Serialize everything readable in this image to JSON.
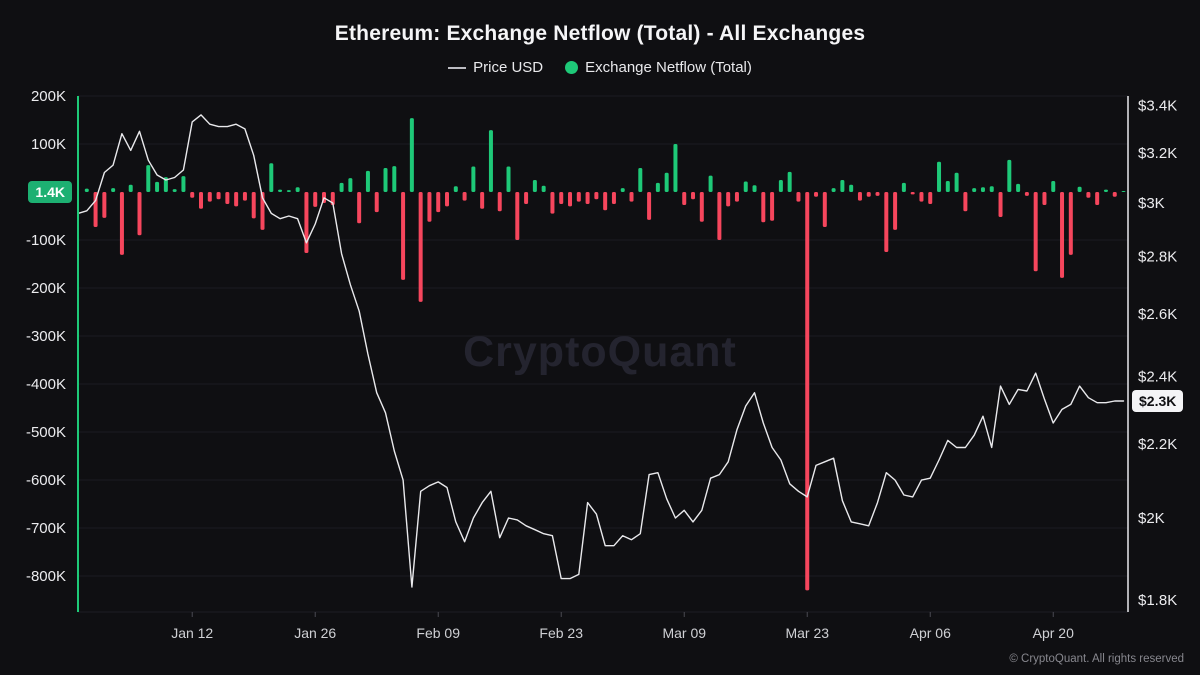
{
  "header": {
    "title": "Ethereum: Exchange Netflow (Total) - All Exchanges",
    "legend": {
      "price": "Price USD",
      "netflow": "Exchange Netflow (Total)"
    }
  },
  "badges": {
    "netflow": "1.4K",
    "price": "$2.3K"
  },
  "watermark": {
    "text": "CryptoQuant"
  },
  "footer": {
    "copyright": "© CryptoQuant. All rights reserved"
  },
  "colors": {
    "netflow_positive": "#1ec978",
    "netflow_negative": "#f6465d",
    "price_line": "#e9e9ec",
    "badge_netflow_bg": "#1db072",
    "badge_price_bg": "#f4f4f6",
    "grid": "#1b1b23",
    "left_axis_line": "#1ec978",
    "right_axis_line": "#e9e9ec"
  },
  "chart_data": {
    "type": "combo",
    "title": "Ethereum: Exchange Netflow (Total) - All Exchanges",
    "x": {
      "tick_labels": [
        "Jan 12",
        "Jan 26",
        "Feb 09",
        "Feb 23",
        "Mar 09",
        "Mar 23",
        "Apr 06",
        "Apr 20"
      ],
      "tick_day_indices": [
        13,
        27,
        41,
        55,
        69,
        83,
        97,
        111
      ],
      "days_total": 120
    },
    "left_axis": {
      "name": "Exchange Netflow (Total)",
      "unit": "K",
      "tick_labels": [
        "200K",
        "100K",
        "-100K",
        "-200K",
        "-300K",
        "-400K",
        "-500K",
        "-600K",
        "-700K",
        "-800K"
      ],
      "tick_values": [
        200,
        100,
        -100,
        -200,
        -300,
        -400,
        -500,
        -600,
        -700,
        -800
      ],
      "current_value_label": "1.4K"
    },
    "right_axis": {
      "name": "Price USD",
      "scale": "log",
      "tick_labels": [
        "$3.4K",
        "$3.2K",
        "$3K",
        "$2.8K",
        "$2.6K",
        "$2.4K",
        "$2.2K",
        "$2K",
        "$1.8K"
      ],
      "tick_values": [
        3.4,
        3.2,
        3.0,
        2.8,
        2.6,
        2.4,
        2.2,
        2.0,
        1.8
      ],
      "current_value_label": "$2.3K"
    },
    "series": [
      {
        "name": "Exchange Netflow (Total)",
        "type": "bar",
        "axis": "left",
        "values": [
          0,
          7,
          -73,
          -54,
          8,
          -131,
          15,
          -90,
          56,
          21,
          31,
          6,
          33,
          -12,
          -35,
          -20,
          -15,
          -25,
          -30,
          -18,
          -55,
          -79,
          60,
          5,
          4,
          10,
          -127,
          -31,
          -23,
          -27,
          19,
          29,
          -65,
          44,
          -42,
          50,
          54,
          -183,
          154,
          -229,
          -62,
          -42,
          -30,
          12,
          -18,
          53,
          -35,
          129,
          -40,
          53,
          -100,
          -25,
          25,
          13,
          -45,
          -25,
          -30,
          -20,
          -25,
          -15,
          -38,
          -25,
          8,
          -20,
          50,
          -58,
          19,
          40,
          100,
          -27,
          -15,
          -62,
          34,
          -100,
          -30,
          -20,
          22,
          14,
          -63,
          -60,
          25,
          42,
          -20,
          -830,
          -10,
          -73,
          8,
          25,
          15,
          -18,
          -10,
          -8,
          -125,
          -79,
          19,
          -5,
          -20,
          -25,
          63,
          23,
          40,
          -40,
          8,
          10,
          12,
          -52,
          67,
          17,
          -8,
          -165,
          -27,
          23,
          -179,
          -131,
          11,
          -12,
          -27,
          5,
          -10,
          1.4
        ]
      },
      {
        "name": "Price USD",
        "type": "line",
        "axis": "right",
        "values": [
          2.96,
          2.97,
          3.01,
          3.12,
          3.15,
          3.28,
          3.21,
          3.29,
          3.17,
          3.11,
          3.09,
          3.1,
          3.13,
          3.33,
          3.36,
          3.32,
          3.31,
          3.31,
          3.32,
          3.3,
          3.19,
          3.02,
          2.96,
          2.94,
          2.95,
          2.94,
          2.85,
          2.92,
          3.02,
          3.0,
          2.81,
          2.7,
          2.61,
          2.47,
          2.35,
          2.29,
          2.18,
          2.1,
          1.83,
          2.07,
          2.085,
          2.095,
          2.08,
          1.99,
          1.94,
          2.0,
          2.04,
          2.07,
          1.95,
          2.0,
          1.995,
          1.98,
          1.97,
          1.96,
          1.955,
          1.85,
          1.85,
          1.86,
          2.04,
          2.01,
          1.93,
          1.93,
          1.955,
          1.945,
          1.96,
          2.115,
          2.12,
          2.05,
          2.0,
          2.02,
          1.99,
          2.02,
          2.105,
          2.115,
          2.15,
          2.24,
          2.31,
          2.35,
          2.26,
          2.19,
          2.155,
          2.09,
          2.07,
          2.055,
          2.14,
          2.15,
          2.16,
          2.045,
          1.99,
          1.985,
          1.98,
          2.04,
          2.12,
          2.1,
          2.06,
          2.055,
          2.1,
          2.105,
          2.155,
          2.21,
          2.19,
          2.19,
          2.225,
          2.28,
          2.19,
          2.37,
          2.315,
          2.36,
          2.355,
          2.41,
          2.33,
          2.26,
          2.3,
          2.315,
          2.37,
          2.335,
          2.32,
          2.32,
          2.325,
          2.325
        ]
      }
    ]
  }
}
